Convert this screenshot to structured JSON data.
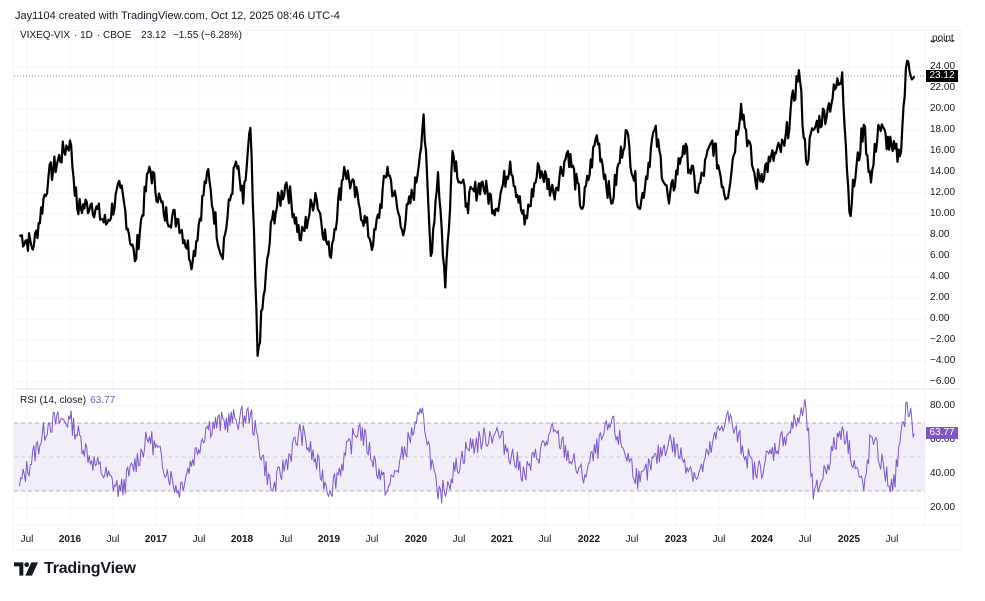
{
  "header": {
    "credit": "Jay1104 created with TradingView.com, Oct 12, 2025 08:46 UTC-4"
  },
  "legend": {
    "symbol": "VIXEQ-VIX",
    "interval": "1D",
    "exchange": "CBOE",
    "last": "23.12",
    "change": "−1.55 (−6.28%)"
  },
  "price_axis": {
    "unit": "point",
    "labels": [
      "26.00",
      "24.00",
      "22.00",
      "20.00",
      "18.00",
      "16.00",
      "14.00",
      "12.00",
      "10.00",
      "8.00",
      "6.00",
      "4.00",
      "2.00",
      "0.00",
      "−2.00",
      "−4.00",
      "−6.00"
    ],
    "current_tag": "23.12"
  },
  "rsi": {
    "label": "RSI (14, close)",
    "value": "63.77",
    "axis_labels": [
      "80.00",
      "60.00",
      "40.00",
      "20.00"
    ],
    "current_tag": "63.77",
    "color": "#7e57c2",
    "band_fill": "#ede7f6"
  },
  "time_axis": {
    "labels": [
      {
        "text": "Jul",
        "year": false
      },
      {
        "text": "2016",
        "year": true
      },
      {
        "text": "Jul",
        "year": false
      },
      {
        "text": "2017",
        "year": true
      },
      {
        "text": "Jul",
        "year": false
      },
      {
        "text": "2018",
        "year": true
      },
      {
        "text": "Jul",
        "year": false
      },
      {
        "text": "2019",
        "year": true
      },
      {
        "text": "Jul",
        "year": false
      },
      {
        "text": "2020",
        "year": true
      },
      {
        "text": "Jul",
        "year": false
      },
      {
        "text": "2021",
        "year": true
      },
      {
        "text": "Jul",
        "year": false
      },
      {
        "text": "2022",
        "year": true
      },
      {
        "text": "Jul",
        "year": false
      },
      {
        "text": "2023",
        "year": true
      },
      {
        "text": "Jul",
        "year": false
      },
      {
        "text": "2024",
        "year": true
      },
      {
        "text": "Jul",
        "year": false
      },
      {
        "text": "2025",
        "year": true
      },
      {
        "text": "Jul",
        "year": false
      }
    ]
  },
  "branding": {
    "logo_text": "TradingView"
  },
  "chart_data": [
    {
      "type": "line",
      "title": "VIXEQ-VIX · 1D · CBOE",
      "xlabel": "",
      "ylabel": "point",
      "ylim": [
        -6,
        26
      ],
      "grid": true,
      "line_color": "#000000",
      "x": [
        "2015-06",
        "2015-08",
        "2015-10",
        "2016-01",
        "2016-02",
        "2016-04",
        "2016-06",
        "2016-08",
        "2016-10",
        "2016-12",
        "2017-02",
        "2017-04",
        "2017-06",
        "2017-08",
        "2017-10",
        "2017-12",
        "2018-01",
        "2018-02",
        "2018-03",
        "2018-05",
        "2018-07",
        "2018-09",
        "2018-11",
        "2019-01",
        "2019-03",
        "2019-05",
        "2019-07",
        "2019-09",
        "2019-11",
        "2020-01",
        "2020-02",
        "2020-03",
        "2020-04",
        "2020-05",
        "2020-06",
        "2020-08",
        "2020-10",
        "2020-12",
        "2021-02",
        "2021-04",
        "2021-06",
        "2021-08",
        "2021-10",
        "2021-12",
        "2022-02",
        "2022-04",
        "2022-06",
        "2022-08",
        "2022-10",
        "2022-12",
        "2023-02",
        "2023-04",
        "2023-06",
        "2023-08",
        "2023-10",
        "2023-12",
        "2024-02",
        "2024-04",
        "2024-06",
        "2024-07",
        "2024-08",
        "2024-10",
        "2024-12",
        "2025-01",
        "2025-03",
        "2025-04",
        "2025-05",
        "2025-07",
        "2025-08",
        "2025-09",
        "2025-10"
      ],
      "values": [
        8.0,
        7.0,
        13.5,
        17.0,
        10.5,
        11.0,
        9.0,
        12.5,
        5.5,
        14.5,
        10.0,
        9.5,
        5.5,
        14.0,
        6.0,
        15.0,
        11.0,
        18.2,
        -3.5,
        9.5,
        13.0,
        7.5,
        12.0,
        6.0,
        14.5,
        11.0,
        7.0,
        14.5,
        8.5,
        13.0,
        19.5,
        6.0,
        14.0,
        3.0,
        16.0,
        11.0,
        13.0,
        10.5,
        15.0,
        9.0,
        14.5,
        12.0,
        16.0,
        10.5,
        17.5,
        11.0,
        18.0,
        10.5,
        18.0,
        11.0,
        16.5,
        12.0,
        17.0,
        11.5,
        20.5,
        13.0,
        15.0,
        16.5,
        23.7,
        15.0,
        18.0,
        20.0,
        23.5,
        10.2,
        18.5,
        13.0,
        18.5,
        16.0,
        15.5,
        24.6,
        23.12
      ],
      "current_value": 23.12
    },
    {
      "type": "line",
      "title": "RSI (14, close)",
      "ylabel": "",
      "ylim": [
        10,
        90
      ],
      "bands": {
        "upper": 70,
        "middle": 50,
        "lower": 30
      },
      "line_color": "#7e57c2",
      "x": [
        "2015-06",
        "2015-10",
        "2016-01",
        "2016-04",
        "2016-08",
        "2016-12",
        "2017-04",
        "2017-08",
        "2017-12",
        "2018-02",
        "2018-05",
        "2018-09",
        "2019-01",
        "2019-05",
        "2019-09",
        "2020-01",
        "2020-02",
        "2020-04",
        "2020-08",
        "2020-12",
        "2021-04",
        "2021-08",
        "2021-12",
        "2022-04",
        "2022-08",
        "2022-12",
        "2023-04",
        "2023-08",
        "2023-12",
        "2024-04",
        "2024-07",
        "2024-08",
        "2024-12",
        "2025-03",
        "2025-04",
        "2025-07",
        "2025-09",
        "2025-10"
      ],
      "values": [
        33,
        70,
        72,
        48,
        30,
        62,
        30,
        68,
        72,
        75,
        30,
        65,
        30,
        68,
        30,
        70,
        74,
        25,
        55,
        65,
        40,
        65,
        38,
        70,
        35,
        60,
        38,
        75,
        40,
        62,
        78,
        25,
        68,
        30,
        62,
        30,
        82,
        63.77
      ],
      "current_value": 63.77
    }
  ]
}
